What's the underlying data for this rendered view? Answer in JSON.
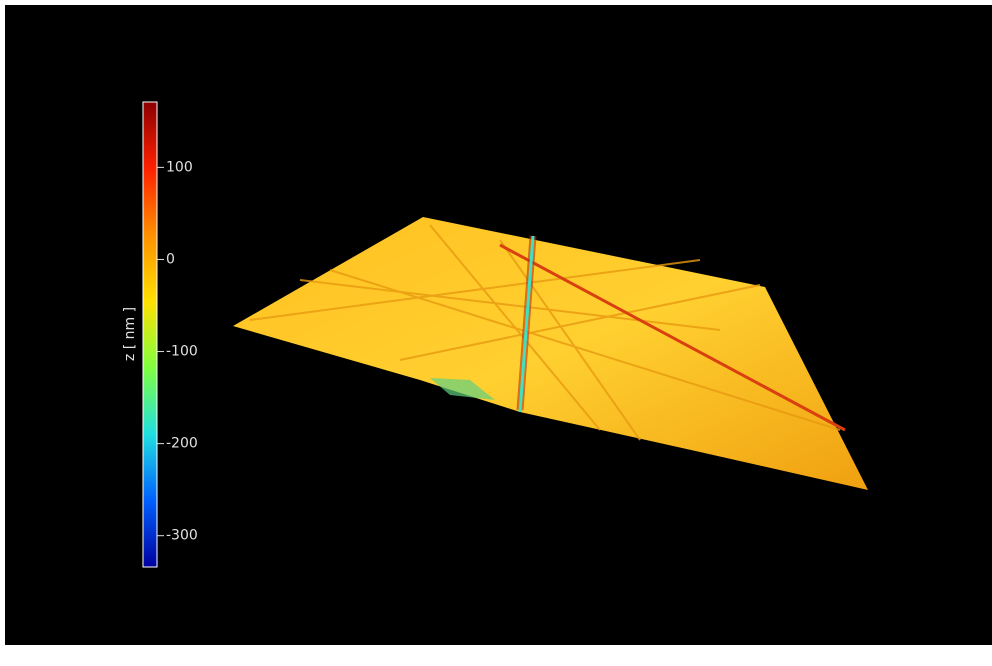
{
  "chart_data": {
    "type": "surface3d",
    "colorbar_label": "z [ nm ]",
    "zlim": [
      -334,
      171
    ],
    "zticks": [
      -300,
      -200,
      -100,
      0,
      100
    ],
    "colormap": [
      "#8b0000",
      "#ff2000",
      "#ff9000",
      "#ffe000",
      "#80ff40",
      "#20e0e0",
      "#0060ff",
      "#0000a0"
    ]
  }
}
